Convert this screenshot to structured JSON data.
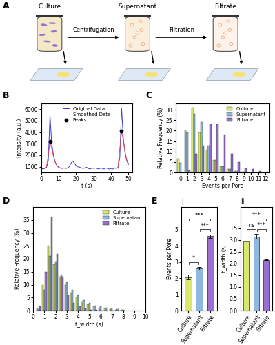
{
  "diagram": {
    "panel": "A",
    "tubes": [
      "Culture",
      "Supernatant",
      "Filtrate"
    ],
    "steps": [
      "Centrifugation",
      "Filtration"
    ]
  },
  "chart_data": [
    {
      "panel": "B",
      "type": "line",
      "x_label": "t (s)",
      "y_label": "Intensity (a.u.)",
      "x": [
        0,
        1,
        2,
        3,
        4,
        5,
        6,
        7,
        8,
        9,
        10,
        11,
        12,
        13,
        14,
        15,
        16,
        17,
        18,
        19,
        20,
        21,
        22,
        23,
        24,
        25,
        26,
        27,
        28,
        29,
        30,
        31,
        32,
        33,
        34,
        35,
        36,
        37,
        38,
        39,
        40,
        41,
        42,
        43,
        44,
        45,
        46,
        47,
        48,
        49,
        50
      ],
      "series": [
        {
          "name": "Original Data",
          "color": "#3b3bd6",
          "line_style": "solid",
          "values": [
            900,
            800,
            850,
            950,
            1500,
            5500,
            3000,
            2000,
            1400,
            1100,
            950,
            900,
            850,
            900,
            850,
            900,
            1000,
            1300,
            1500,
            1300,
            1100,
            1000,
            950,
            900,
            850,
            900,
            950,
            850,
            800,
            900,
            850,
            900,
            850,
            800,
            900,
            850,
            800,
            900,
            850,
            800,
            850,
            800,
            900,
            850,
            950,
            1800,
            6100,
            3500,
            2200,
            1500,
            1200
          ]
        },
        {
          "name": "Smoothed Data",
          "color": "#e0474c",
          "line_style": "solid",
          "values": [
            null,
            null,
            null,
            1000,
            2000,
            3200,
            2600,
            1900,
            1400,
            1100,
            950,
            null,
            null,
            null,
            null,
            null,
            null,
            null,
            null,
            null,
            null,
            null,
            null,
            null,
            null,
            null,
            null,
            null,
            null,
            null,
            null,
            null,
            null,
            null,
            null,
            null,
            null,
            null,
            null,
            null,
            null,
            null,
            null,
            null,
            1100,
            2500,
            4100,
            3300,
            2300,
            1600,
            1250
          ]
        },
        {
          "name": "Peaks",
          "color": "#000000",
          "type": "scatter",
          "marker": "circle",
          "x": [
            5,
            46
          ],
          "values": [
            3200,
            4100
          ]
        }
      ],
      "xlim": [
        0,
        52
      ],
      "ylim": [
        500,
        6500
      ],
      "xticks": [
        0,
        10,
        20,
        30,
        40,
        50
      ],
      "yticks": [
        1000,
        2000,
        3000,
        4000,
        5000,
        6000
      ],
      "legend": "upper center"
    },
    {
      "panel": "C",
      "type": "bar",
      "x_label": "Events per Pore",
      "y_label": "Relative Frequency (%)",
      "x": [
        0,
        1,
        2,
        3,
        4,
        5,
        6,
        7,
        8,
        9,
        10,
        11,
        12
      ],
      "series": [
        {
          "name": "Culture",
          "color": "#d9e86a",
          "values": [
            6.5,
            20,
            31,
            19,
            11,
            6,
            3,
            1.5,
            0.5,
            0.3,
            0,
            0,
            0
          ]
        },
        {
          "name": "Supernatant",
          "color": "#8fb8de",
          "values": [
            4.5,
            19,
            28,
            24,
            13,
            6,
            3,
            1.5,
            0.5,
            0.3,
            0,
            0,
            0
          ]
        },
        {
          "name": "Filtrate",
          "color": "#9b6fd1",
          "values": [
            0,
            1,
            9,
            13,
            23,
            23,
            18,
            9,
            5,
            2,
            1.5,
            0.5,
            0.3
          ]
        }
      ],
      "xlim": [
        -0.6,
        12.6
      ],
      "ylim": [
        0,
        33
      ],
      "xticks": [
        0,
        1,
        2,
        3,
        4,
        5,
        6,
        7,
        8,
        9,
        10,
        11,
        12
      ],
      "yticks": [
        0,
        5,
        10,
        15,
        20,
        25,
        30
      ],
      "legend": "upper right"
    },
    {
      "panel": "D",
      "type": "bar",
      "x_label": "t_width (s)",
      "y_label": "Relative Frequency (%)",
      "x": [
        0.5,
        1,
        1.5,
        2,
        2.5,
        3,
        3.5,
        4,
        4.5,
        5,
        5.5,
        6,
        6.5,
        7,
        7.5,
        8
      ],
      "series": [
        {
          "name": "Culture",
          "color": "#d9e86a",
          "values": [
            1,
            10,
            25,
            18,
            13,
            10,
            7,
            5,
            3.5,
            2.5,
            1.5,
            1,
            0.8,
            0.5,
            0.3,
            0.2
          ]
        },
        {
          "name": "Supernatant",
          "color": "#8fb8de",
          "values": [
            0.5,
            8,
            21,
            19,
            14,
            11,
            8,
            6,
            4,
            3,
            2,
            1.5,
            1,
            0.7,
            0.5,
            0.3
          ]
        },
        {
          "name": "Filtrate",
          "color": "#9b6fd1",
          "values": [
            1.5,
            15,
            36,
            22,
            13,
            6,
            3,
            1.5,
            0.8,
            0.4,
            0.2,
            0.1,
            0,
            0,
            0,
            0
          ]
        }
      ],
      "xlim": [
        0,
        10
      ],
      "ylim": [
        0,
        40
      ],
      "xticks": [
        0,
        1,
        2,
        3,
        4,
        5,
        6,
        7,
        8,
        9,
        10
      ],
      "yticks": [
        0,
        5,
        10,
        15,
        20,
        25,
        30,
        35
      ],
      "legend": "upper right"
    },
    {
      "panel": "E",
      "subpanel": "i",
      "type": "bar",
      "y_label": "Events per Pore",
      "categories": [
        "Culture",
        "Supernatant",
        "Filtrate"
      ],
      "values": [
        2.05,
        2.6,
        4.6
      ],
      "errors": [
        0.15,
        0.08,
        0.1
      ],
      "colors": [
        "#d9e86a",
        "#8fb8de",
        "#9b6fd1"
      ],
      "ylim": [
        0,
        6.4
      ],
      "yticks": [
        0,
        1,
        2,
        3,
        4,
        5
      ],
      "annotations": [
        {
          "between": [
            "Culture",
            "Supernatant"
          ],
          "text": "*"
        },
        {
          "between": [
            "Supernatant",
            "Filtrate"
          ],
          "text": "***"
        },
        {
          "between": [
            "Culture",
            "Filtrate"
          ],
          "text": "***"
        }
      ]
    },
    {
      "subpanel": "ii",
      "type": "bar",
      "y_label": "t_width (s)",
      "categories": [
        "Culture",
        "Supernatant",
        "Filtrate"
      ],
      "values": [
        2.95,
        3.15,
        2.15
      ],
      "errors": [
        0.1,
        0.1,
        0.02
      ],
      "colors": [
        "#d9e86a",
        "#8fb8de",
        "#9b6fd1"
      ],
      "ylim": [
        0,
        4.4
      ],
      "yticks": [
        0.0,
        0.5,
        1.0,
        1.5,
        2.0,
        2.5,
        3.0,
        3.5
      ],
      "annotations": [
        {
          "between": [
            "Culture",
            "Supernatant"
          ],
          "text": "ns"
        },
        {
          "between": [
            "Supernatant",
            "Filtrate"
          ],
          "text": "***"
        },
        {
          "between": [
            "Culture",
            "Filtrate"
          ],
          "text": "***"
        }
      ]
    }
  ]
}
